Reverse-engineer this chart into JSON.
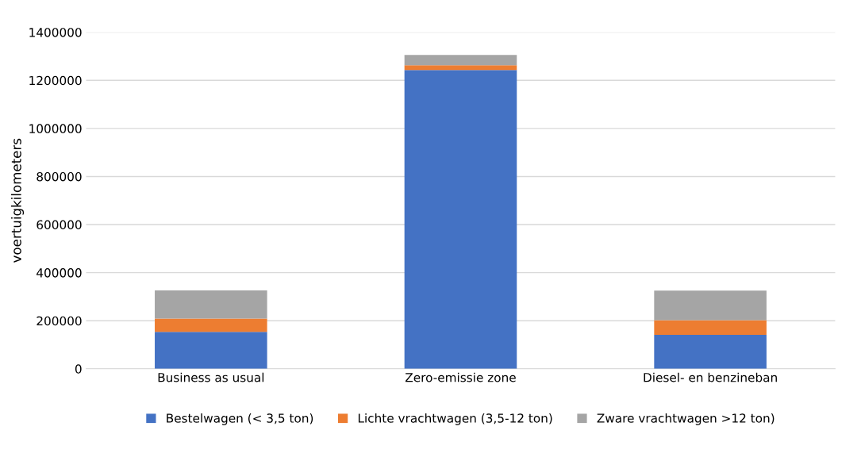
{
  "chart_data": {
    "type": "bar",
    "stacked": true,
    "ylabel": "voertuigkilometers",
    "categories": [
      "Business as usual",
      "Zero-emissie zone",
      "Diesel- en benzineban"
    ],
    "series": [
      {
        "name": "Bestelwagen (< 3,5 ton)",
        "color": "#4472c4",
        "values": [
          154000,
          1243000,
          141000
        ]
      },
      {
        "name": "Lichte vrachtwagen (3,5-12 ton)",
        "color": "#ed7d31",
        "values": [
          55000,
          20000,
          61000
        ]
      },
      {
        "name": "Zware vrachtwagen >12 ton)",
        "color": "#a5a5a5",
        "values": [
          117000,
          43000,
          123000
        ]
      }
    ],
    "ylim": [
      0,
      1400000
    ],
    "yticks": [
      0,
      200000,
      400000,
      600000,
      800000,
      1000000,
      1200000,
      1400000
    ],
    "grid": "y",
    "legend": "bottom"
  }
}
